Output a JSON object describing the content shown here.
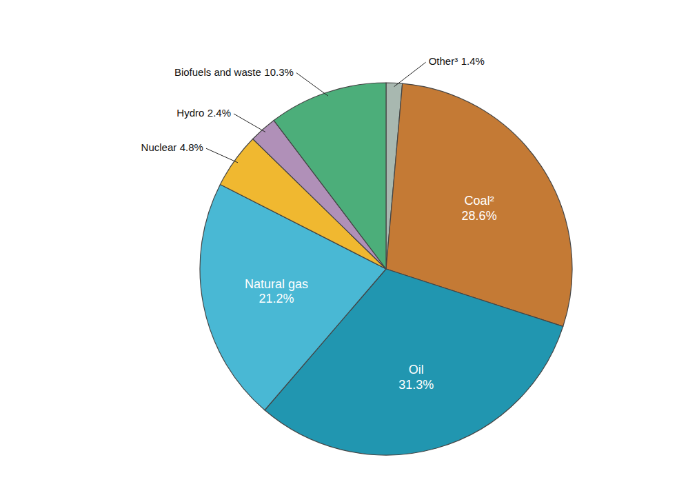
{
  "chart_data": {
    "type": "pie",
    "categories": [
      "Other³",
      "Coal²",
      "Oil",
      "Natural gas",
      "Nuclear",
      "Hydro",
      "Biofuels and waste"
    ],
    "values": [
      1.4,
      28.6,
      31.3,
      21.2,
      4.8,
      2.4,
      10.3
    ],
    "value_labels": [
      "1.4%",
      "28.6%",
      "31.3%",
      "21.2%",
      "4.8%",
      "2.4%",
      "10.3%"
    ],
    "colors": [
      "#A8B8B0",
      "#C47A35",
      "#2196B0",
      "#49B8D4",
      "#F0B830",
      "#B090B8",
      "#4CAE7A"
    ],
    "data_labels": true
  }
}
